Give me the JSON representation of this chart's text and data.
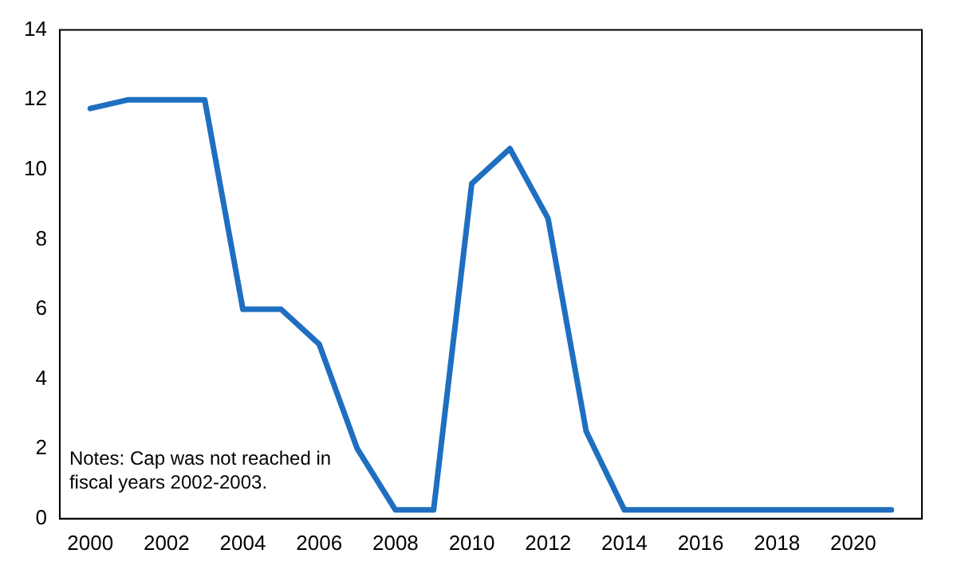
{
  "chart_data": {
    "type": "line",
    "x": [
      2000,
      2001,
      2002,
      2003,
      2004,
      2005,
      2006,
      2007,
      2008,
      2009,
      2010,
      2011,
      2012,
      2013,
      2014,
      2015,
      2016,
      2017,
      2018,
      2019,
      2020,
      2021
    ],
    "series": [
      {
        "color": "#1f6fc1",
        "values": [
          11.75,
          12,
          12,
          12,
          6,
          6,
          5,
          2,
          0.25,
          0.25,
          9.6,
          10.6,
          8.6,
          2.5,
          0.25,
          0.25,
          0.25,
          0.25,
          0.25,
          0.25,
          0.25,
          0.25
        ]
      }
    ],
    "xlim": [
      1999.2,
      2021.8
    ],
    "xticks": [
      2000,
      2002,
      2004,
      2006,
      2008,
      2010,
      2012,
      2014,
      2016,
      2018,
      2020
    ],
    "ylim": [
      0,
      14
    ],
    "yticks": [
      0,
      2,
      4,
      6,
      8,
      10,
      12,
      14
    ],
    "grid": false,
    "legend": false,
    "marker": "none",
    "line_style": "solid",
    "annotations": [
      "Notes: Cap was not reached in fiscal years 2002-2003."
    ]
  }
}
